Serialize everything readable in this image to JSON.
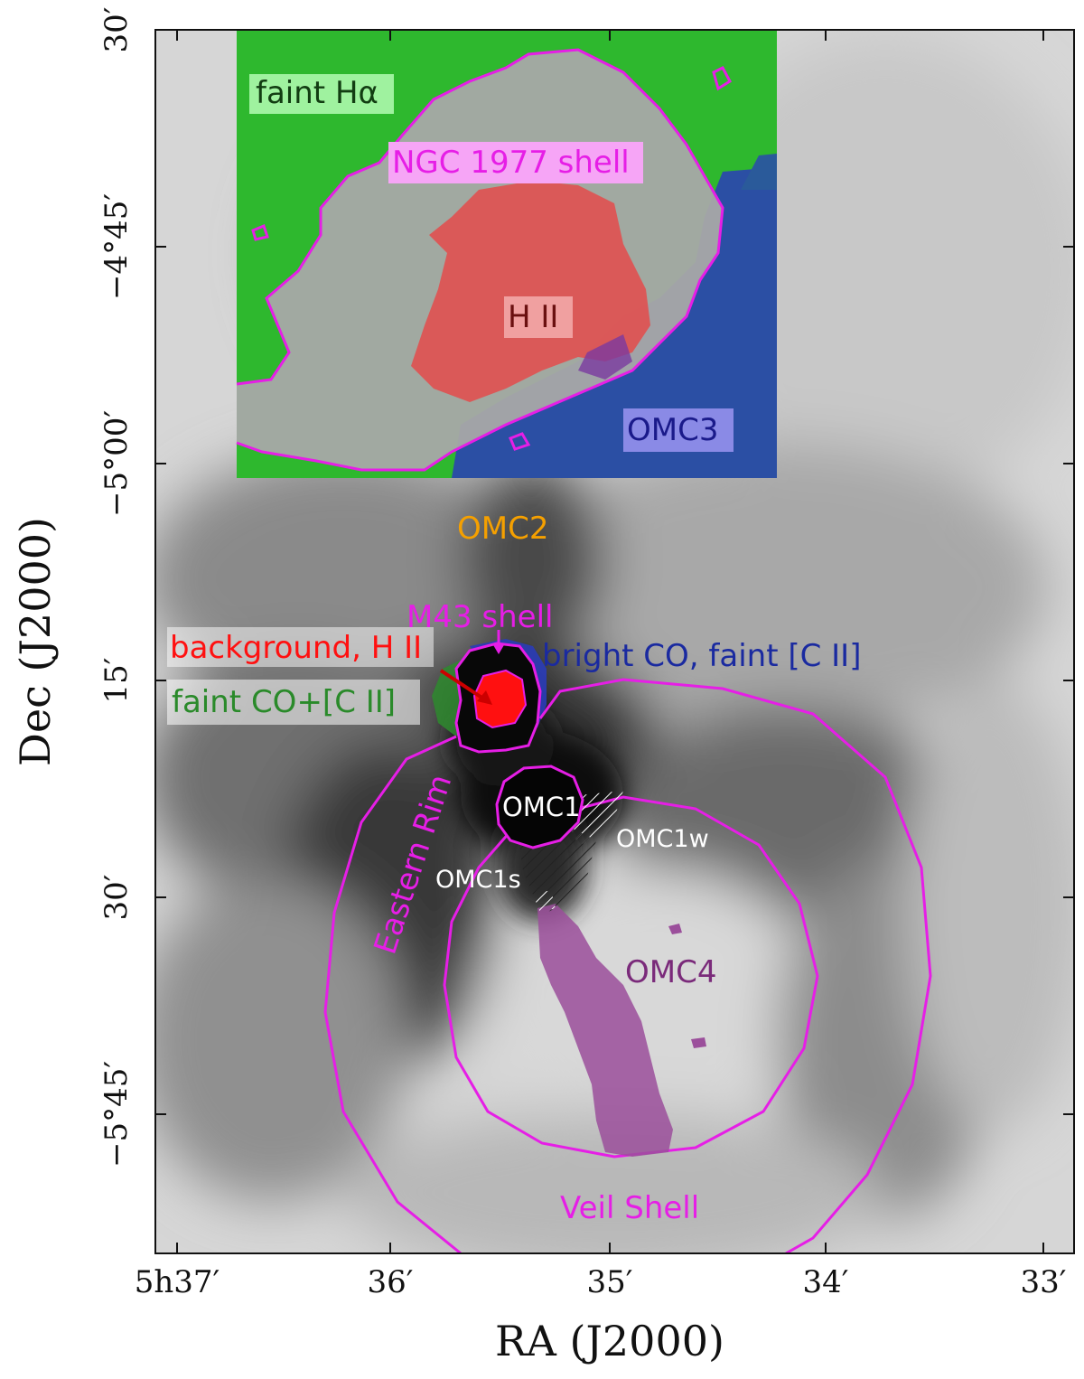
{
  "figure": {
    "xlabel": "RA (J2000)",
    "ylabel": "Dec (J2000)",
    "x_ticks": [
      "5h37′",
      "36′",
      "35′",
      "34′",
      "33′"
    ],
    "y_ticks": [
      "30′",
      "−4°45′",
      "−5°00′",
      "15′",
      "30′",
      "−5°45′"
    ]
  },
  "labels": {
    "faint_halpha": "faint Hα",
    "ngc1977_shell": "NGC 1977 shell",
    "hii": "H II",
    "omc3": "OMC3",
    "omc2": "OMC2",
    "m43_shell": "M43 shell",
    "background_hii": "background, H II",
    "bright_co": "bright CO, faint [C II]",
    "faint_co_cii": "faint CO+[C II]",
    "eastern_rim": "Eastern Rim",
    "omc1": "OMC1",
    "omc1w": "OMC1w",
    "omc1s": "OMC1s",
    "omc4": "OMC4",
    "veil_shell": "Veil Shell"
  },
  "colors": {
    "contour": "#e61ee6",
    "faint_halpha_region": "#2eb82e",
    "hii_region": "#e05050",
    "co_region": "#2a3cb8",
    "omc2_label": "#f5a000",
    "omc4_region": "#9b4f9b",
    "m43_core": "#ff1010"
  }
}
